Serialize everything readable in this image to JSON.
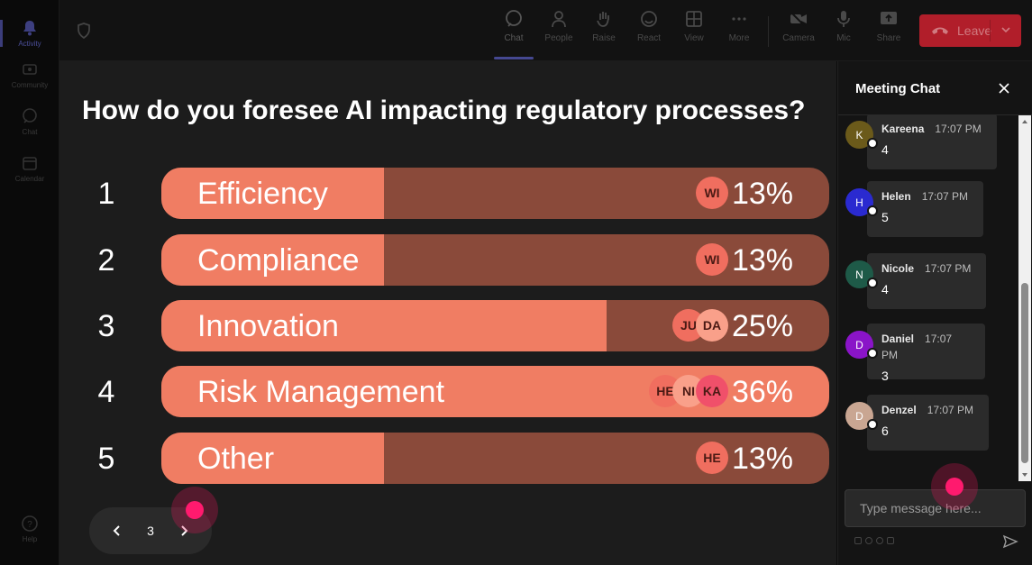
{
  "rail": {
    "items": [
      {
        "label": "Activity",
        "icon": "bell-icon",
        "active": true
      },
      {
        "label": "Community",
        "icon": "community-icon"
      },
      {
        "label": "Chat",
        "icon": "chat-icon"
      },
      {
        "label": "Calendar",
        "icon": "calendar-icon"
      },
      {
        "label": "Help",
        "icon": "help-icon"
      }
    ]
  },
  "toolbar": {
    "buttons": [
      {
        "label": "Chat",
        "icon": "chat-icon"
      },
      {
        "label": "People",
        "icon": "people-icon"
      },
      {
        "label": "Raise",
        "icon": "raise-hand-icon"
      },
      {
        "label": "React",
        "icon": "react-icon"
      },
      {
        "label": "View",
        "icon": "view-grid-icon"
      },
      {
        "label": "More",
        "icon": "more-icon"
      },
      {
        "label": "Camera",
        "icon": "camera-icon"
      },
      {
        "label": "Mic",
        "icon": "mic-icon"
      },
      {
        "label": "Share",
        "icon": "share-icon"
      }
    ],
    "leave_label": "Leave",
    "leave_color": "#b11e2a"
  },
  "poll": {
    "question": "How do you foresee AI impacting regulatory processes?",
    "options": [
      {
        "num": "1",
        "label": "Efficiency",
        "percent_text": "13%",
        "percent": 13,
        "avatars": [
          "WI"
        ]
      },
      {
        "num": "2",
        "label": "Compliance",
        "percent_text": "13%",
        "percent": 13,
        "avatars": [
          "WI"
        ]
      },
      {
        "num": "3",
        "label": "Innovation",
        "percent_text": "25%",
        "percent": 25,
        "avatars": [
          "JU",
          "DA"
        ]
      },
      {
        "num": "4",
        "label": "Risk Management",
        "percent_text": "36%",
        "percent": 36,
        "avatars": [
          "HE",
          "NI",
          "KA"
        ]
      },
      {
        "num": "5",
        "label": "Other",
        "percent_text": "13%",
        "percent": 13,
        "avatars": [
          "HE"
        ]
      }
    ],
    "fill_color": "#f07d63",
    "track_color": "#8a4a3a"
  },
  "pager": {
    "page": "3"
  },
  "chat": {
    "title": "Meeting Chat",
    "messages": [
      {
        "initial": "K",
        "name": "Kareena",
        "time": "17:07 PM",
        "text": "4",
        "color": "#6b5a1a"
      },
      {
        "initial": "H",
        "name": "Helen",
        "time": "17:07 PM",
        "text": "5",
        "color": "#2a2ad0"
      },
      {
        "initial": "N",
        "name": "Nicole",
        "time": "17:07 PM",
        "text": "4",
        "color": "#1e5a48"
      },
      {
        "initial": "D",
        "name": "Daniel",
        "time": "17:07 PM",
        "text": "3",
        "color": "#8a14c8"
      },
      {
        "initial": "D",
        "name": "Denzel",
        "time": "17:07 PM",
        "text": "6",
        "color": "#c9a692"
      }
    ],
    "compose_placeholder": "Type message here..."
  }
}
